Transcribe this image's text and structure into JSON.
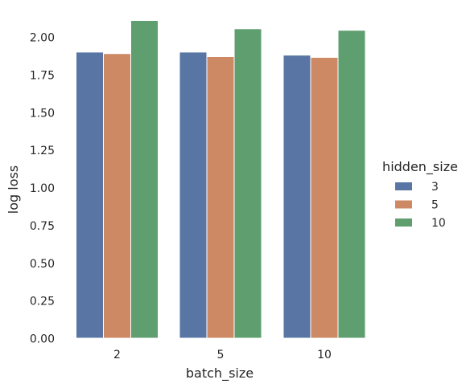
{
  "chart_data": {
    "type": "bar",
    "categories": [
      "2",
      "5",
      "10"
    ],
    "series": [
      {
        "name": "3",
        "values": [
          1.9,
          1.9,
          1.88
        ],
        "color": "#5875a4"
      },
      {
        "name": "5",
        "values": [
          1.89,
          1.87,
          1.865
        ],
        "color": "#cc8963"
      },
      {
        "name": "10",
        "values": [
          2.11,
          2.055,
          2.045
        ],
        "color": "#5f9e6e"
      }
    ],
    "xlabel": "batch_size",
    "ylabel": "log loss",
    "ylim": [
      0,
      2.15
    ],
    "yticks": [
      "0.00",
      "0.25",
      "0.50",
      "0.75",
      "1.00",
      "1.25",
      "1.50",
      "1.75",
      "2.00"
    ],
    "grid": false,
    "legend": {
      "title": "hidden_size",
      "placement": "right"
    }
  }
}
